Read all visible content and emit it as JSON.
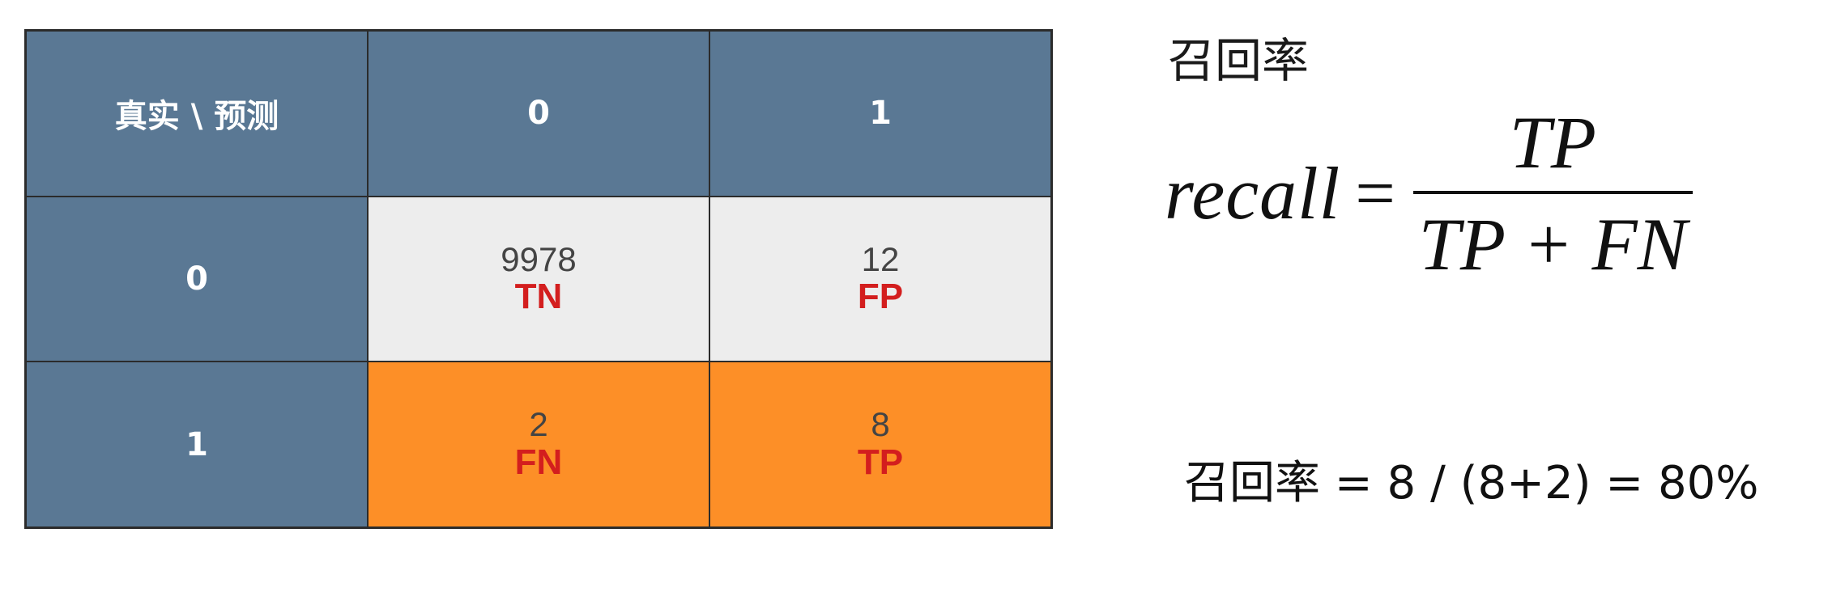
{
  "matrix": {
    "corner": "真实 \\ 预测",
    "col_headers": [
      "0",
      "1"
    ],
    "row_headers": [
      "0",
      "1"
    ],
    "cells": [
      [
        {
          "count": "9978",
          "tag": "TN"
        },
        {
          "count": "12",
          "tag": "FP"
        }
      ],
      [
        {
          "count": "2",
          "tag": "FN"
        },
        {
          "count": "8",
          "tag": "TP"
        }
      ]
    ],
    "colors": {
      "header_bg": "#5a7894",
      "negative_bg": "#ededed",
      "positive_bg": "#fd8f27",
      "tag_color": "#d31e1e"
    }
  },
  "formula": {
    "title": "召回率",
    "lhs": "recall",
    "eq": "=",
    "numerator": "TP",
    "denominator": "TP + FN"
  },
  "calculation": "召回率 = 8 / (8+2) = 80%"
}
